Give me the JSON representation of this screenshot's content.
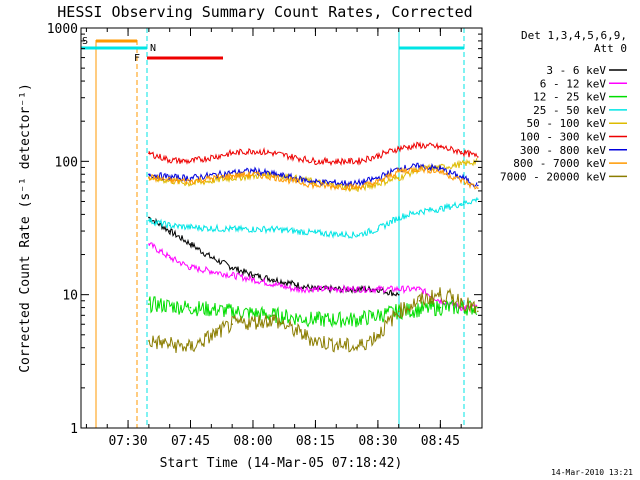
{
  "chart_data": {
    "type": "line",
    "title": "HESSI Observing Summary Count Rates, Corrected",
    "xlabel": "Start Time (14-Mar-05 07:18:42)",
    "ylabel": "Corrected Count Rate (s⁻¹ detector⁻¹)",
    "yscale": "log",
    "ylim": [
      1,
      1000
    ],
    "xlim": [
      "07:18:42",
      "08:55:00"
    ],
    "xticks": [
      "07:30",
      "07:45",
      "08:00",
      "08:15",
      "08:30",
      "08:45"
    ],
    "yticks": [
      "1",
      "10",
      "100",
      "1000"
    ],
    "legend_title": [
      "Det 1,3,4,5,6,9,",
      "Att 0"
    ],
    "legend_position": "right",
    "series": [
      {
        "name": "3 - 6 keV",
        "color": "#000000",
        "x": [
          "07:35:00",
          "07:40:00",
          "07:45:00",
          "07:50:00",
          "07:55:00",
          "08:00:00",
          "08:05:00",
          "08:10:00",
          "08:15:00",
          "08:20:00",
          "08:25:00",
          "08:30:00",
          "08:35:00"
        ],
        "values": [
          38,
          30,
          24,
          19,
          16,
          14,
          13,
          12,
          11,
          11,
          11,
          11,
          10
        ]
      },
      {
        "name": "6 - 12 keV",
        "color": "#ff00ff",
        "x": [
          "07:35:00",
          "07:40:00",
          "07:45:00",
          "07:50:00",
          "07:55:00",
          "08:00:00",
          "08:05:00",
          "08:10:00",
          "08:15:00",
          "08:20:00",
          "08:25:00",
          "08:30:00",
          "08:35:00",
          "08:40:00",
          "08:45:00",
          "08:50:00",
          "08:54:00"
        ],
        "values": [
          24,
          19,
          16,
          15,
          14,
          13,
          12,
          11,
          11,
          11,
          11,
          11,
          11,
          11,
          9,
          8,
          8
        ]
      },
      {
        "name": "12 - 25 keV",
        "color": "#00dd00",
        "x": [
          "07:35:00",
          "07:45:00",
          "07:55:00",
          "08:05:00",
          "08:15:00",
          "08:25:00",
          "08:35:00",
          "08:45:00",
          "08:54:00"
        ],
        "values": [
          8.5,
          8,
          7.5,
          7,
          6.5,
          6.5,
          7.5,
          8,
          8
        ]
      },
      {
        "name": "25 - 50 keV",
        "color": "#00e5e5",
        "x": [
          "07:35:00",
          "07:40:00",
          "07:45:00",
          "07:55:00",
          "08:05:00",
          "08:15:00",
          "08:25:00",
          "08:30:00",
          "08:35:00",
          "08:40:00",
          "08:45:00",
          "08:50:00",
          "08:54:00"
        ],
        "values": [
          36,
          33,
          32,
          31,
          31,
          29,
          28,
          31,
          38,
          42,
          44,
          48,
          52
        ]
      },
      {
        "name": "50 - 100 keV",
        "color": "#ddbb00",
        "x": [
          "07:35:00",
          "07:45:00",
          "07:55:00",
          "08:05:00",
          "08:15:00",
          "08:25:00",
          "08:35:00",
          "08:40:00",
          "08:45:00",
          "08:50:00",
          "08:54:00"
        ],
        "values": [
          75,
          68,
          75,
          80,
          70,
          62,
          75,
          88,
          90,
          95,
          100
        ]
      },
      {
        "name": "100 - 300 keV",
        "color": "#ee0000",
        "x": [
          "07:35:00",
          "07:40:00",
          "07:45:00",
          "07:55:00",
          "08:00:00",
          "08:05:00",
          "08:15:00",
          "08:25:00",
          "08:30:00",
          "08:35:00",
          "08:40:00",
          "08:45:00",
          "08:50:00",
          "08:54:00"
        ],
        "values": [
          115,
          102,
          100,
          115,
          120,
          115,
          100,
          100,
          110,
          125,
          132,
          128,
          118,
          108
        ]
      },
      {
        "name": "300 - 800 keV",
        "color": "#0000dd",
        "x": [
          "07:35:00",
          "07:40:00",
          "07:45:00",
          "07:55:00",
          "08:00:00",
          "08:05:00",
          "08:15:00",
          "08:25:00",
          "08:30:00",
          "08:35:00",
          "08:40:00",
          "08:45:00",
          "08:50:00",
          "08:54:00"
        ],
        "values": [
          80,
          76,
          75,
          82,
          85,
          80,
          70,
          68,
          75,
          88,
          92,
          88,
          76,
          66
        ]
      },
      {
        "name": "800 - 7000 keV",
        "color": "#ff9900",
        "x": [
          "07:35:00",
          "07:40:00",
          "07:45:00",
          "07:55:00",
          "08:00:00",
          "08:05:00",
          "08:15:00",
          "08:25:00",
          "08:30:00",
          "08:35:00",
          "08:40:00",
          "08:45:00",
          "08:50:00",
          "08:54:00"
        ],
        "values": [
          76,
          72,
          71,
          78,
          80,
          76,
          66,
          64,
          70,
          84,
          88,
          84,
          72,
          63
        ]
      },
      {
        "name": "7000 - 20000 keV",
        "color": "#8b7d00",
        "x": [
          "07:35:00",
          "07:45:00",
          "07:55:00",
          "08:05:00",
          "08:15:00",
          "08:25:00",
          "08:30:00",
          "08:35:00",
          "08:40:00",
          "08:45:00",
          "08:50:00",
          "08:54:00"
        ],
        "values": [
          4.5,
          4,
          6,
          6.5,
          4.5,
          4,
          5,
          7.5,
          9,
          10,
          9,
          7.5
        ]
      }
    ],
    "annotations": [
      {
        "label": "S",
        "color": "#ff9900"
      },
      {
        "label": "N",
        "color": "#00e5e5"
      },
      {
        "label": "F",
        "color": "#ee0000"
      }
    ],
    "timestamp": "14-Mar-2010 13:21"
  }
}
